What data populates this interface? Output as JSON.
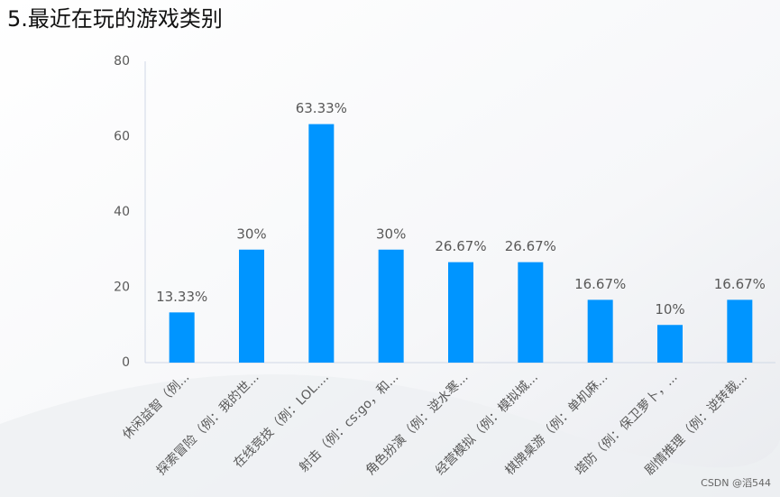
{
  "chart_data": {
    "type": "bar",
    "title": "5.最近在玩的游戏类别",
    "categories": [
      "休闲益智（例...",
      "探索冒险（例：我的世...",
      "在线竞技（例：LOL....",
      "射击（例：cs:go，和...",
      "角色扮演（例：逆水寒...",
      "经营模拟（例：模拟城...",
      "棋牌桌游（例：单机麻...",
      "塔防（例：保卫萝卜，...",
      "剧情推理（例：逆转裁..."
    ],
    "values": [
      13.33,
      30,
      63.33,
      30,
      26.67,
      26.67,
      16.67,
      10,
      16.67
    ],
    "value_labels": [
      "13.33%",
      "30%",
      "63.33%",
      "30%",
      "26.67%",
      "26.67%",
      "16.67%",
      "10%",
      "16.67%"
    ],
    "color": "#0095ff",
    "ylim": [
      0,
      80
    ],
    "yticks": [
      0,
      20,
      40,
      60,
      80
    ],
    "grid": false,
    "watermark": "CSDN @滔544"
  }
}
